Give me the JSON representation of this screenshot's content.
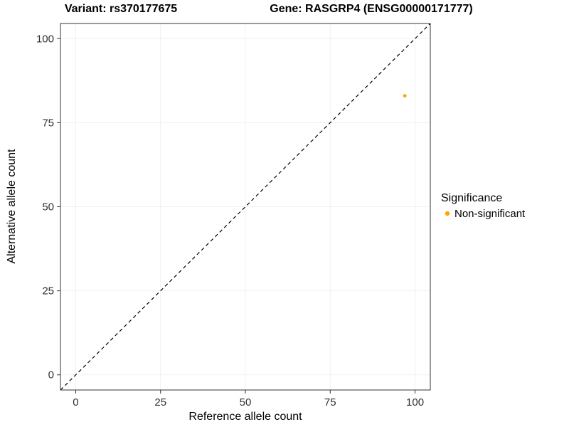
{
  "chart_data": {
    "type": "scatter",
    "title_left": "Variant: rs370177675",
    "title_right": "Gene: RASGRP4 (ENSG00000171777)",
    "xlabel": "Reference allele count",
    "ylabel": "Alternative allele count",
    "xlim": [
      -4.5,
      104.5
    ],
    "ylim": [
      -4.5,
      104.5
    ],
    "xticks": [
      0,
      25,
      50,
      75,
      100
    ],
    "yticks": [
      0,
      25,
      50,
      75,
      100
    ],
    "grid": true,
    "identity_line": {
      "style": "dashed",
      "color": "#000000",
      "from": [
        -4.5,
        -4.5
      ],
      "to": [
        104.5,
        104.5
      ]
    },
    "points": [
      {
        "x": 97,
        "y": 83,
        "series": "Non-significant"
      }
    ],
    "colors": {
      "point": "#FFA500",
      "grid": "#f0f0f0",
      "panel_border": "#333333",
      "tick": "#333333"
    },
    "legend": {
      "position": "right",
      "title": "Significance",
      "entries": [
        {
          "label": "Non-significant",
          "color": "#FFA500"
        }
      ]
    }
  }
}
